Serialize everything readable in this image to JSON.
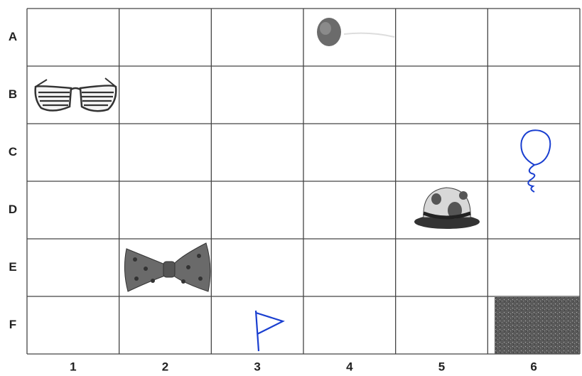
{
  "rows": [
    "A",
    "B",
    "C",
    "D",
    "E",
    "F"
  ],
  "columns": [
    "1",
    "2",
    "3",
    "4",
    "5",
    "6"
  ]
}
